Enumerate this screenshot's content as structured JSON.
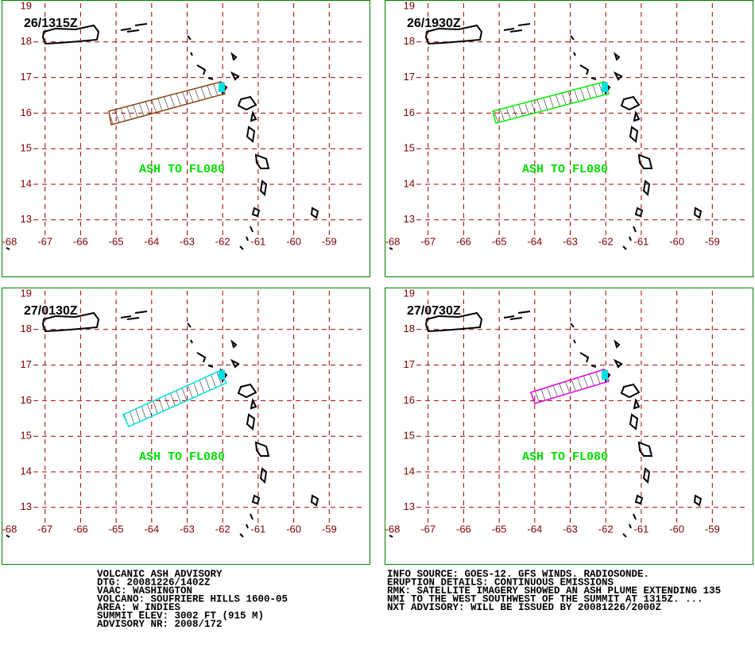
{
  "panels": [
    {
      "time": "26/1315Z",
      "note": "ASH TO FL080"
    },
    {
      "time": "26/1930Z",
      "note": "ASH TO FL080"
    },
    {
      "time": "27/0130Z",
      "note": "ASH TO FL080"
    },
    {
      "time": "27/0730Z",
      "note": "ASH TO FL080"
    }
  ],
  "lat_ticks": [
    19,
    18,
    17,
    16,
    15,
    14,
    13
  ],
  "lon_ticks": [
    -68,
    -67,
    -66,
    -65,
    -64,
    -63,
    -62,
    -61,
    -60,
    -59
  ],
  "advisory_left": [
    "VOLCANIC ASH ADVISORY",
    "DTG: 20081226/1402Z",
    "VAAC: WASHINGTON",
    "VOLCANO: SOUFRIERE HILLS 1600-05",
    "AREA: W_INDIES",
    "SUMMIT ELEV: 3002 FT (915 M)",
    "ADVISORY NR: 2008/172"
  ],
  "advisory_right": [
    "INFO SOURCE: GOES-12. GFS WINDS. RADIOSONDE.",
    "ERUPTION DETAILS: CONTINUOUS EMISSIONS",
    "RMK: SATELLITE IMAGERY SHOWED AN ASH PLUME EXTENDING 135",
    "NMI TO THE WEST SOUTHWEST OF THE SUMMIT AT 1315Z. ...",
    "NXT ADVISORY: WILL BE ISSUED BY 20081226/2000Z"
  ]
}
